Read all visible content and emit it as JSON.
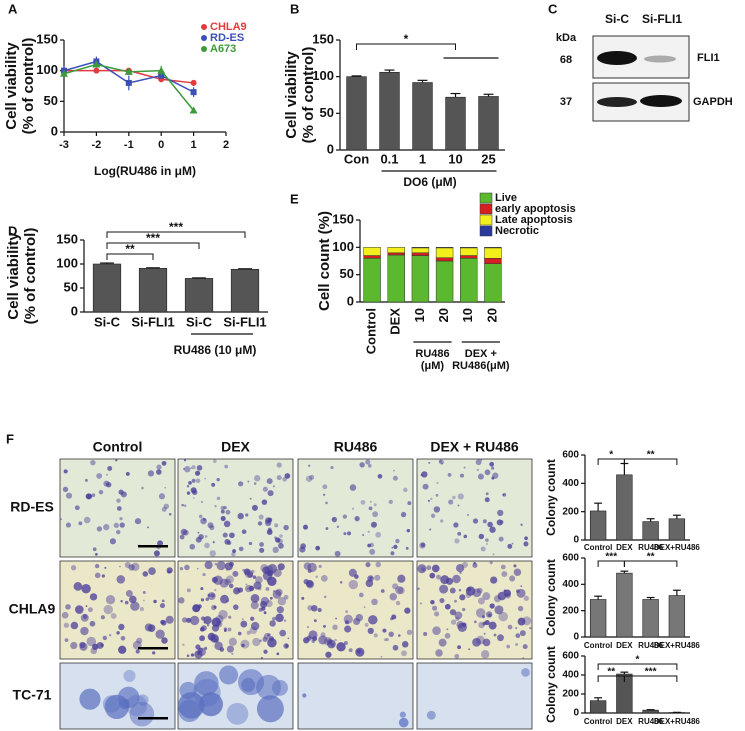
{
  "chart_data": [
    {
      "panel": "A",
      "type": "line",
      "y_label": [
        "Cell viability",
        "(% of control)"
      ],
      "x_label": "Log(RU486 in μM)",
      "x": [
        -3,
        -2,
        -1,
        0,
        1
      ],
      "series": [
        {
          "name": "CHLA9",
          "color": "#e23a3f",
          "marker": "circle",
          "values": [
            100,
            100,
            100,
            86,
            80
          ],
          "errors": [
            3,
            3,
            3,
            5,
            5
          ]
        },
        {
          "name": "RD-ES",
          "color": "#3b4fb8",
          "marker": "square",
          "values": [
            100,
            115,
            80,
            92,
            65
          ],
          "errors": [
            8,
            8,
            12,
            5,
            8
          ]
        },
        {
          "name": "A673",
          "color": "#3d9a3a",
          "marker": "triangle",
          "values": [
            95,
            110,
            98,
            100,
            35
          ],
          "errors": [
            5,
            5,
            5,
            8,
            5
          ]
        }
      ],
      "xlim": [
        -3,
        2
      ],
      "xticks": [
        -3,
        -2,
        -1,
        0,
        1,
        2
      ],
      "ylim": [
        0,
        150
      ],
      "yticks": [
        0,
        50,
        100,
        150
      ],
      "legend": "upper right"
    },
    {
      "panel": "B",
      "type": "bar",
      "y_label": [
        "Cell viability",
        "(% of control)"
      ],
      "x_label": "DO6 (μM)",
      "categories": [
        "Con",
        "0.1",
        "1",
        "10",
        "25"
      ],
      "values": [
        100,
        106,
        92,
        72,
        73
      ],
      "errors": [
        1,
        3,
        3,
        5,
        3
      ],
      "color": "#555555",
      "ylim": [
        0,
        150
      ],
      "yticks": [
        0,
        50,
        100,
        150
      ],
      "annotations": [
        "*"
      ]
    },
    {
      "panel": "D",
      "type": "bar",
      "y_label": [
        "Cell viability",
        "(% of control)"
      ],
      "x_label": "RU486 (10 μM)",
      "categories": [
        "Si-C",
        "Si-FLI1",
        "Si-C",
        "Si-FLI1"
      ],
      "values": [
        100,
        91,
        70,
        89
      ],
      "errors": [
        2,
        1,
        1,
        1
      ],
      "color": "#555555",
      "ylim": [
        0,
        150
      ],
      "yticks": [
        0,
        50,
        100,
        150
      ],
      "annotations": [
        "**",
        "***",
        "***"
      ]
    },
    {
      "panel": "E",
      "type": "stacked_bar",
      "y_label": [
        "Cell count (%)"
      ],
      "categories": [
        "Control",
        "DEX",
        "10",
        "20",
        "10",
        "20"
      ],
      "group_labels": [
        [
          "RU486",
          "(μM)"
        ],
        [
          "DEX +",
          "RU486(μM)"
        ]
      ],
      "series": [
        {
          "name": "Live",
          "color": "#5cb82e",
          "values": [
            80,
            86,
            85,
            75,
            80,
            70
          ]
        },
        {
          "name": "early apoptosis",
          "color": "#d42020",
          "values": [
            5,
            4,
            5,
            6,
            5,
            10
          ]
        },
        {
          "name": "Late apoptosis",
          "color": "#f2ef1c",
          "values": [
            15,
            10,
            9,
            18,
            14,
            19
          ]
        },
        {
          "name": "Necrotic",
          "color": "#2a3a9c",
          "values": [
            0,
            0,
            1,
            1,
            1,
            1
          ]
        }
      ],
      "ylim": [
        0,
        150
      ],
      "yticks": [
        0,
        50,
        100,
        150
      ],
      "legend": "upper right"
    },
    {
      "type": "bar",
      "y_label": [
        "Colony count"
      ],
      "categories": [
        "Control",
        "DEX",
        "RU486",
        "DEX+RU486"
      ],
      "values": [
        205,
        460,
        130,
        150
      ],
      "errors": [
        55,
        80,
        20,
        25
      ],
      "color": "#666666",
      "ylim": [
        0,
        600
      ],
      "yticks": [
        0,
        200,
        400,
        600
      ],
      "annotations": [
        "*",
        "**"
      ]
    },
    {
      "type": "bar",
      "y_label": [
        "Colony count"
      ],
      "categories": [
        "Control",
        "DEX",
        "RU486",
        "DEX+RU486"
      ],
      "values": [
        285,
        485,
        285,
        315
      ],
      "errors": [
        25,
        15,
        15,
        40
      ],
      "color": "#777777",
      "ylim": [
        0,
        600
      ],
      "yticks": [
        0,
        200,
        400,
        600
      ],
      "annotations": [
        "***",
        "**"
      ]
    },
    {
      "type": "bar",
      "y_label": [
        "Colony count"
      ],
      "categories": [
        "Control",
        "DEX",
        "RU486",
        "DEX+RU486"
      ],
      "values": [
        130,
        410,
        30,
        5
      ],
      "errors": [
        30,
        20,
        5,
        2
      ],
      "color": "#555555",
      "ylim": [
        0,
        600
      ],
      "yticks": [
        0,
        200,
        400,
        600
      ],
      "annotations": [
        "**",
        "***",
        "*"
      ]
    }
  ],
  "blot": {
    "panel": "C",
    "lanes": [
      "Si-C",
      "Si-FLI1"
    ],
    "unit": "kDa",
    "rows": [
      {
        "size": "68",
        "protein": "FLI1"
      },
      {
        "size": "37",
        "protein": "GAPDH"
      }
    ]
  },
  "images": {
    "panel": "F",
    "columns": [
      "Control",
      "DEX",
      "RU486",
      "DEX + RU486"
    ],
    "rows": [
      "RD-ES",
      "CHLA9",
      "TC-71"
    ]
  }
}
